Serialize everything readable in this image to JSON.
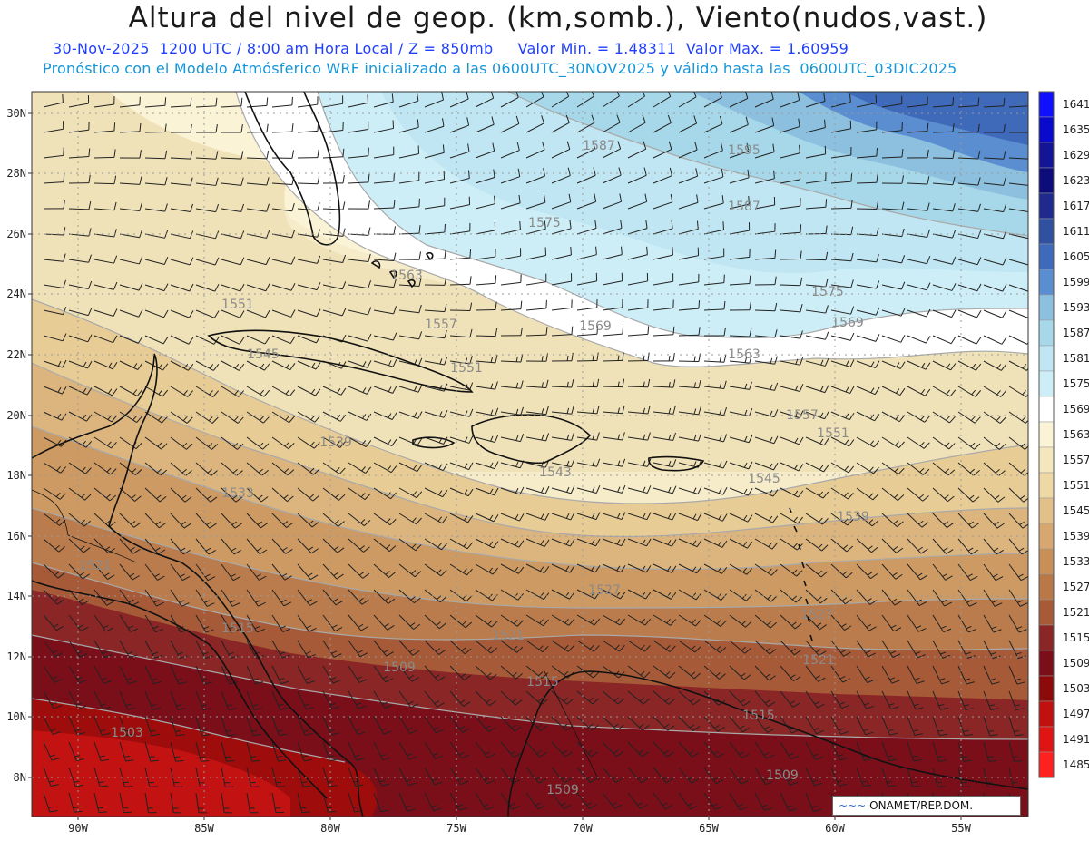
{
  "header": {
    "title": "Altura del nivel de geop. (km,somb.), Viento(nudos,vast.)",
    "subtitle_line1": "30-Nov-2025  1200 UTC / 8:00 am Hora Local / Z = 850mb     Valor Min. = 1.48311  Valor Max. = 1.60959",
    "subtitle_line2": "Pronóstico con el Modelo Atmósferico WRF inicializado a las 0600UTC_30NOV2025 y válido hasta las  0600UTC_03DIC2025"
  },
  "credit": {
    "logo_text": "~~~",
    "label": "ONAMET/REP.DOM."
  },
  "axes": {
    "lat_labels": [
      "30N",
      "28N",
      "26N",
      "24N",
      "22N",
      "20N",
      "18N",
      "16N",
      "14N",
      "12N",
      "10N",
      "8N"
    ],
    "lon_labels": [
      "90W",
      "85W",
      "80W",
      "75W",
      "70W",
      "65W",
      "60W",
      "55W"
    ]
  },
  "contour_labels": [
    "1587",
    "1595",
    "1575",
    "1587",
    "1563",
    "1575",
    "1551",
    "1557",
    "1569",
    "1569",
    "1545",
    "1551",
    "1563",
    "1557",
    "1539",
    "1551",
    "1543",
    "1545",
    "1533",
    "1539",
    "1521",
    "1527",
    "1527",
    "1515",
    "1521",
    "1521",
    "1509",
    "1515",
    "1515",
    "1503",
    "1509",
    "1509"
  ],
  "colorbar": {
    "levels": [
      "1641",
      "1635",
      "1629",
      "1623",
      "1617",
      "1611",
      "1605",
      "1599",
      "1593",
      "1587",
      "1581",
      "1575",
      "1569",
      "1563",
      "1557",
      "1551",
      "1545",
      "1539",
      "1533",
      "1527",
      "1521",
      "1515",
      "1509",
      "1503",
      "1497",
      "1491",
      "1485"
    ],
    "colors": [
      "#1010ff",
      "#0a0acc",
      "#141496",
      "#0c0c7a",
      "#1f2a8c",
      "#3050a0",
      "#3f6aba",
      "#5a8ed0",
      "#8cc0de",
      "#a6d8ea",
      "#bfe6f2",
      "#cdeef7",
      "#ffffff",
      "#fbf3d6",
      "#f4e6bd",
      "#eed8a6",
      "#e2c08a",
      "#d6a770",
      "#c88f58",
      "#b87848",
      "#a65a38",
      "#8a2626",
      "#7a0f1a",
      "#8c0a0a",
      "#c01010",
      "#e01414",
      "#ff2020"
    ]
  },
  "colors": {
    "ocean_cool": "#c8eef7",
    "ocean_warm": "#8b1a1a"
  }
}
